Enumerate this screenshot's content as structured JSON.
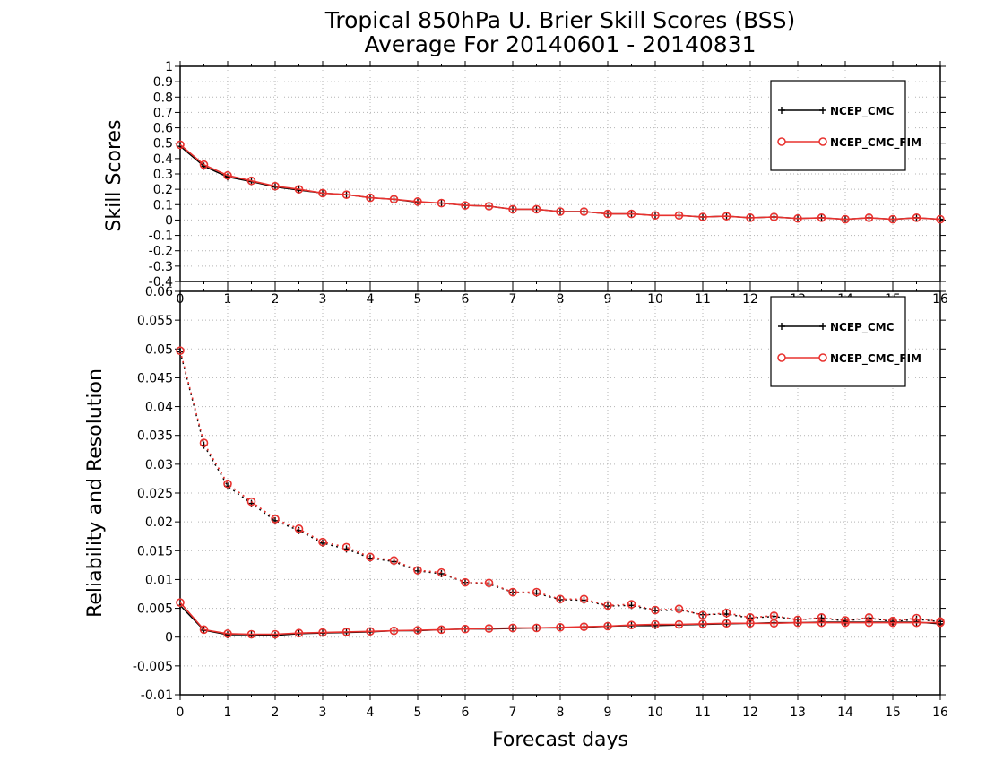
{
  "title": {
    "line1": "Tropical 850hPa U. Brier Skill Scores (BSS)",
    "line2": "Average For 20140601 - 20140831"
  },
  "colors": {
    "NCEP_CMC": "#000000",
    "NCEP_CMC_FIM": "#e8322f",
    "grid": "#b4b4b4"
  },
  "chart_data": [
    {
      "type": "line",
      "xlabel": "",
      "ylabel": "Skill Scores",
      "xlim": [
        0,
        16
      ],
      "ylim": [
        -0.4,
        1.0
      ],
      "grid": true,
      "legend_position": "top-right",
      "x_ticks": [
        "0",
        "1",
        "2",
        "3",
        "4",
        "5",
        "6",
        "7",
        "8",
        "9",
        "10",
        "11",
        "12",
        "13",
        "14",
        "15",
        "16"
      ],
      "y_ticks": [
        "-0.4",
        "-0.3",
        "-0.2",
        "-0.1",
        "0",
        "0.1",
        "0.2",
        "0.3",
        "0.4",
        "0.5",
        "0.6",
        "0.7",
        "0.8",
        "0.9",
        "1"
      ],
      "x": [
        0,
        0.5,
        1,
        1.5,
        2,
        2.5,
        3,
        3.5,
        4,
        4.5,
        5,
        5.5,
        6,
        6.5,
        7,
        7.5,
        8,
        8.5,
        9,
        9.5,
        10,
        10.5,
        11,
        11.5,
        12,
        12.5,
        13,
        13.5,
        14,
        14.5,
        15,
        15.5,
        16
      ],
      "series": [
        {
          "name": "NCEP_CMC",
          "style": "solid",
          "marker": "plus",
          "values": [
            0.48,
            0.35,
            0.28,
            0.25,
            0.215,
            0.195,
            0.175,
            0.165,
            0.145,
            0.135,
            0.115,
            0.11,
            0.095,
            0.09,
            0.07,
            0.07,
            0.055,
            0.055,
            0.04,
            0.04,
            0.03,
            0.03,
            0.02,
            0.025,
            0.015,
            0.02,
            0.01,
            0.015,
            0.005,
            0.015,
            0.005,
            0.015,
            0.005
          ]
        },
        {
          "name": "NCEP_CMC_FIM",
          "style": "solid",
          "marker": "circle",
          "values": [
            0.49,
            0.36,
            0.29,
            0.255,
            0.22,
            0.2,
            0.175,
            0.165,
            0.145,
            0.135,
            0.12,
            0.11,
            0.095,
            0.09,
            0.07,
            0.07,
            0.055,
            0.055,
            0.04,
            0.04,
            0.03,
            0.03,
            0.02,
            0.025,
            0.015,
            0.02,
            0.01,
            0.015,
            0.005,
            0.015,
            0.005,
            0.015,
            0.005
          ]
        }
      ]
    },
    {
      "type": "line",
      "xlabel": "Forecast days",
      "ylabel": "Reliability and Resolution",
      "xlim": [
        0,
        16
      ],
      "ylim": [
        -0.01,
        0.06
      ],
      "grid": true,
      "legend_position": "top-right",
      "x_ticks": [
        "0",
        "1",
        "2",
        "3",
        "4",
        "5",
        "6",
        "7",
        "8",
        "9",
        "10",
        "11",
        "12",
        "13",
        "14",
        "15",
        "16"
      ],
      "y_ticks": [
        "-0.01",
        "-0.005",
        "0",
        "0.005",
        "0.01",
        "0.015",
        "0.02",
        "0.025",
        "0.03",
        "0.035",
        "0.04",
        "0.045",
        "0.05",
        "0.055",
        "0.06"
      ],
      "x": [
        0,
        0.5,
        1,
        1.5,
        2,
        2.5,
        3,
        3.5,
        4,
        4.5,
        5,
        5.5,
        6,
        6.5,
        7,
        7.5,
        8,
        8.5,
        9,
        9.5,
        10,
        10.5,
        11,
        11.5,
        12,
        12.5,
        13,
        13.5,
        14,
        14.5,
        15,
        15.5,
        16
      ],
      "series": [
        {
          "name": "NCEP_CMC",
          "style": "dotted",
          "marker": "plus",
          "values": [
            0.0495,
            0.0333,
            0.0262,
            0.0232,
            0.0202,
            0.0185,
            0.0163,
            0.0153,
            0.0137,
            0.0131,
            0.0115,
            0.011,
            0.0095,
            0.0092,
            0.0078,
            0.0076,
            0.0065,
            0.0064,
            0.0054,
            0.0055,
            0.0046,
            0.0047,
            0.0039,
            0.004,
            0.0033,
            0.0036,
            0.003,
            0.0033,
            0.0028,
            0.0033,
            0.0027,
            0.0031,
            0.0027
          ]
        },
        {
          "name": "NCEP_CMC_FIM",
          "style": "dotted",
          "marker": "circle",
          "values": [
            0.0497,
            0.0337,
            0.0266,
            0.0235,
            0.0205,
            0.0188,
            0.0165,
            0.0156,
            0.0139,
            0.0133,
            0.0116,
            0.0112,
            0.0095,
            0.0094,
            0.0078,
            0.0078,
            0.0066,
            0.0066,
            0.0055,
            0.0057,
            0.0047,
            0.0049,
            0.0038,
            0.0042,
            0.0034,
            0.0037,
            0.003,
            0.0034,
            0.0029,
            0.0034,
            0.0028,
            0.0033,
            0.0027
          ]
        },
        {
          "name": "NCEP_CMC",
          "style": "solid",
          "marker": "plus",
          "values": [
            0.0055,
            0.0012,
            0.0004,
            0.0004,
            0.0003,
            0.0006,
            0.0007,
            0.0008,
            0.0009,
            0.0011,
            0.0011,
            0.0013,
            0.0014,
            0.0014,
            0.0015,
            0.0016,
            0.0016,
            0.0017,
            0.0019,
            0.002,
            0.002,
            0.0021,
            0.0022,
            0.0023,
            0.0024,
            0.0025,
            0.0025,
            0.0026,
            0.0026,
            0.0026,
            0.0026,
            0.0026,
            0.0023
          ]
        },
        {
          "name": "NCEP_CMC_FIM",
          "style": "solid",
          "marker": "circle",
          "values": [
            0.006,
            0.0013,
            0.0006,
            0.0005,
            0.0005,
            0.0007,
            0.0008,
            0.0009,
            0.001,
            0.0011,
            0.0012,
            0.0013,
            0.0014,
            0.0015,
            0.0016,
            0.0016,
            0.0017,
            0.0018,
            0.0019,
            0.0021,
            0.0022,
            0.0022,
            0.0023,
            0.0024,
            0.0024,
            0.0024,
            0.0025,
            0.0025,
            0.0025,
            0.0025,
            0.0025,
            0.0025,
            0.0025
          ]
        }
      ]
    }
  ],
  "legend": {
    "items": [
      {
        "label": "NCEP_CMC",
        "marker": "plus"
      },
      {
        "label": "NCEP_CMC_FIM",
        "marker": "circle"
      }
    ]
  }
}
